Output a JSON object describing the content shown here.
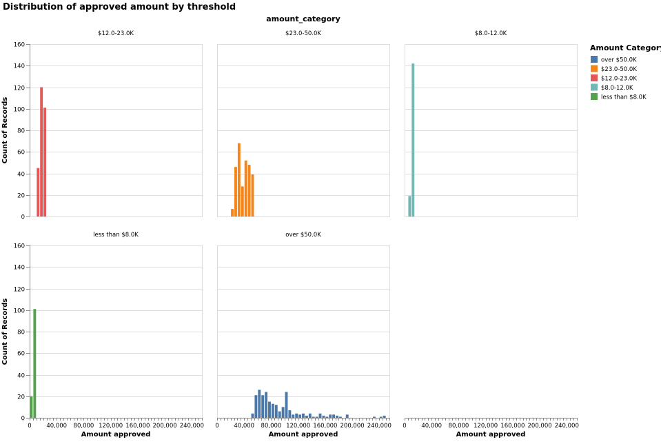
{
  "chart_data": {
    "type": "bar",
    "title": "Distribution of approved amount by threshold",
    "facet_title": "amount_category",
    "xlabel": "Amount approved",
    "ylabel": "Count of Records",
    "ylim": [
      0,
      160
    ],
    "y_ticks": [
      "0",
      "20",
      "40",
      "60",
      "80",
      "100",
      "120",
      "140",
      "160"
    ],
    "xlim": [
      0,
      255000
    ],
    "x_ticks": [
      {
        "value": 0,
        "label": "0"
      },
      {
        "value": 40000,
        "label": "40,000"
      },
      {
        "value": 80000,
        "label": "80,000"
      },
      {
        "value": 120000,
        "label": "120,000"
      },
      {
        "value": 160000,
        "label": "160,000"
      },
      {
        "value": 200000,
        "label": "200,000"
      },
      {
        "value": 240000,
        "label": "240,000"
      }
    ],
    "bin_width": 5000,
    "grid": true,
    "legend": {
      "title": "Amount Category",
      "placement": "right",
      "items": [
        {
          "label": "over $50.0K",
          "color": "#4c78a8"
        },
        {
          "label": "$23.0-50.0K",
          "color": "#f58518"
        },
        {
          "label": "$12.0-23.0K",
          "color": "#e45756"
        },
        {
          "label": "$8.0-12.0K",
          "color": "#72b7b2"
        },
        {
          "label": "less than $8.0K",
          "color": "#54a24b"
        }
      ]
    },
    "facets": [
      {
        "title": "$12.0-23.0K",
        "color": "#e45756",
        "bins": [
          [
            10000,
            45
          ],
          [
            15000,
            120
          ],
          [
            20000,
            101
          ]
        ]
      },
      {
        "title": "$23.0-50.0K",
        "color": "#f58518",
        "bins": [
          [
            20000,
            7
          ],
          [
            25000,
            46
          ],
          [
            30000,
            68
          ],
          [
            35000,
            28
          ],
          [
            40000,
            52
          ],
          [
            45000,
            48
          ],
          [
            50000,
            39
          ]
        ]
      },
      {
        "title": "$8.0-12.0K",
        "color": "#72b7b2",
        "bins": [
          [
            5000,
            19
          ],
          [
            10000,
            142
          ]
        ]
      },
      {
        "title": "less than $8.0K",
        "color": "#54a24b",
        "bins": [
          [
            0,
            20
          ],
          [
            5000,
            101
          ]
        ]
      },
      {
        "title": "over $50.0K",
        "color": "#4c78a8",
        "bins": [
          [
            50000,
            4
          ],
          [
            55000,
            21
          ],
          [
            60000,
            26
          ],
          [
            65000,
            21
          ],
          [
            70000,
            24
          ],
          [
            75000,
            15
          ],
          [
            80000,
            13
          ],
          [
            85000,
            12
          ],
          [
            90000,
            6
          ],
          [
            95000,
            10
          ],
          [
            100000,
            24
          ],
          [
            105000,
            7
          ],
          [
            110000,
            3
          ],
          [
            115000,
            4
          ],
          [
            120000,
            3
          ],
          [
            125000,
            4
          ],
          [
            130000,
            2
          ],
          [
            135000,
            4
          ],
          [
            140000,
            1
          ],
          [
            145000,
            1
          ],
          [
            150000,
            4
          ],
          [
            155000,
            2
          ],
          [
            160000,
            1
          ],
          [
            165000,
            3
          ],
          [
            170000,
            3
          ],
          [
            175000,
            2
          ],
          [
            180000,
            1
          ],
          [
            190000,
            3
          ],
          [
            230000,
            1
          ],
          [
            240000,
            1
          ],
          [
            245000,
            2
          ]
        ]
      }
    ]
  }
}
